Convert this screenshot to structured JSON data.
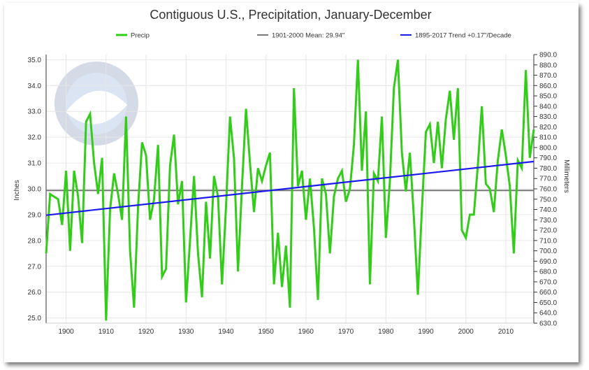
{
  "chart_data": {
    "type": "line",
    "title": "Contiguous U.S., Precipitation, January-December",
    "ylabel": "Inches",
    "y2label": "Millimeters",
    "xlim": [
      1895,
      2017
    ],
    "ylim": [
      24.8,
      35.2
    ],
    "y2lim": [
      630,
      890
    ],
    "x_ticks": [
      "1900",
      "1910",
      "1920",
      "1930",
      "1940",
      "1950",
      "1960",
      "1970",
      "1980",
      "1990",
      "2000",
      "2010"
    ],
    "y_ticks": [
      "35.0",
      "34.0",
      "33.0",
      "32.0",
      "31.0",
      "30.0",
      "29.0",
      "28.0",
      "27.0",
      "26.0",
      "25.0"
    ],
    "y2_ticks": [
      "890.0",
      "880.0",
      "870.0",
      "860.0",
      "850.0",
      "840.0",
      "830.0",
      "820.0",
      "810.0",
      "800.0",
      "790.0",
      "780.0",
      "770.0",
      "760.0",
      "750.0",
      "740.0",
      "730.0",
      "720.0",
      "710.0",
      "700.0",
      "690.0",
      "680.0",
      "670.0",
      "660.0",
      "650.0",
      "640.0",
      "630.0"
    ],
    "grid": true,
    "legend_position": "top",
    "series": [
      {
        "name": "Precip",
        "color": "#33cc1a",
        "x": [
          1895,
          1896,
          1897,
          1898,
          1899,
          1900,
          1901,
          1902,
          1903,
          1904,
          1905,
          1906,
          1907,
          1908,
          1909,
          1910,
          1911,
          1912,
          1913,
          1914,
          1915,
          1916,
          1917,
          1918,
          1919,
          1920,
          1921,
          1922,
          1923,
          1924,
          1925,
          1926,
          1927,
          1928,
          1929,
          1930,
          1931,
          1932,
          1933,
          1934,
          1935,
          1936,
          1937,
          1938,
          1939,
          1940,
          1941,
          1942,
          1943,
          1944,
          1945,
          1946,
          1947,
          1948,
          1949,
          1950,
          1951,
          1952,
          1953,
          1954,
          1955,
          1956,
          1957,
          1958,
          1959,
          1960,
          1961,
          1962,
          1963,
          1964,
          1965,
          1966,
          1967,
          1968,
          1969,
          1970,
          1971,
          1972,
          1973,
          1974,
          1975,
          1976,
          1977,
          1978,
          1979,
          1980,
          1981,
          1982,
          1983,
          1984,
          1985,
          1986,
          1987,
          1988,
          1989,
          1990,
          1991,
          1992,
          1993,
          1994,
          1995,
          1996,
          1997,
          1998,
          1999,
          2000,
          2001,
          2002,
          2003,
          2004,
          2005,
          2006,
          2007,
          2008,
          2009,
          2010,
          2011,
          2012,
          2013,
          2014,
          2015,
          2016,
          2017
        ],
        "values": [
          27.5,
          29.8,
          29.7,
          29.6,
          28.6,
          30.7,
          27.6,
          30.7,
          29.7,
          27.9,
          32.6,
          32.9,
          31.0,
          29.8,
          31.2,
          24.9,
          29.2,
          30.6,
          29.8,
          28.8,
          32.8,
          27.6,
          25.4,
          29.3,
          31.8,
          31.3,
          28.8,
          29.6,
          31.7,
          26.6,
          26.9,
          30.9,
          32.1,
          29.4,
          30.3,
          25.6,
          28.0,
          30.5,
          27.5,
          25.8,
          29.5,
          27.3,
          30.5,
          29.7,
          26.3,
          29.3,
          32.8,
          31.2,
          26.8,
          30.1,
          33.1,
          31.0,
          29.1,
          30.8,
          30.3,
          30.9,
          31.4,
          26.3,
          28.3,
          26.2,
          27.8,
          25.4,
          33.9,
          30.1,
          30.7,
          28.8,
          30.4,
          28.5,
          25.7,
          30.4,
          29.8,
          27.5,
          29.7,
          30.4,
          30.7,
          29.5,
          30.0,
          31.7,
          35.0,
          30.7,
          33.0,
          26.3,
          30.6,
          30.3,
          32.8,
          28.1,
          30.3,
          33.9,
          35.0,
          31.4,
          29.9,
          31.4,
          28.9,
          25.9,
          29.2,
          32.2,
          32.5,
          31.0,
          32.6,
          30.8,
          32.7,
          33.8,
          31.9,
          33.9,
          28.4,
          28.1,
          29.0,
          29.0,
          30.9,
          33.2,
          30.2,
          30.0,
          29.1,
          31.1,
          32.3,
          31.3,
          30.1,
          27.5,
          31.1,
          30.8,
          34.6,
          31.2,
          32.3
        ]
      },
      {
        "name": "1901-2000 Mean: 29.94\"",
        "color": "#777777",
        "values": [
          29.94,
          29.94
        ]
      },
      {
        "name": "1895-2017 Trend +0.17\"/Decade",
        "color": "#1a1aee",
        "x": [
          1895,
          2017
        ],
        "values": [
          28.98,
          31.06
        ]
      }
    ]
  }
}
